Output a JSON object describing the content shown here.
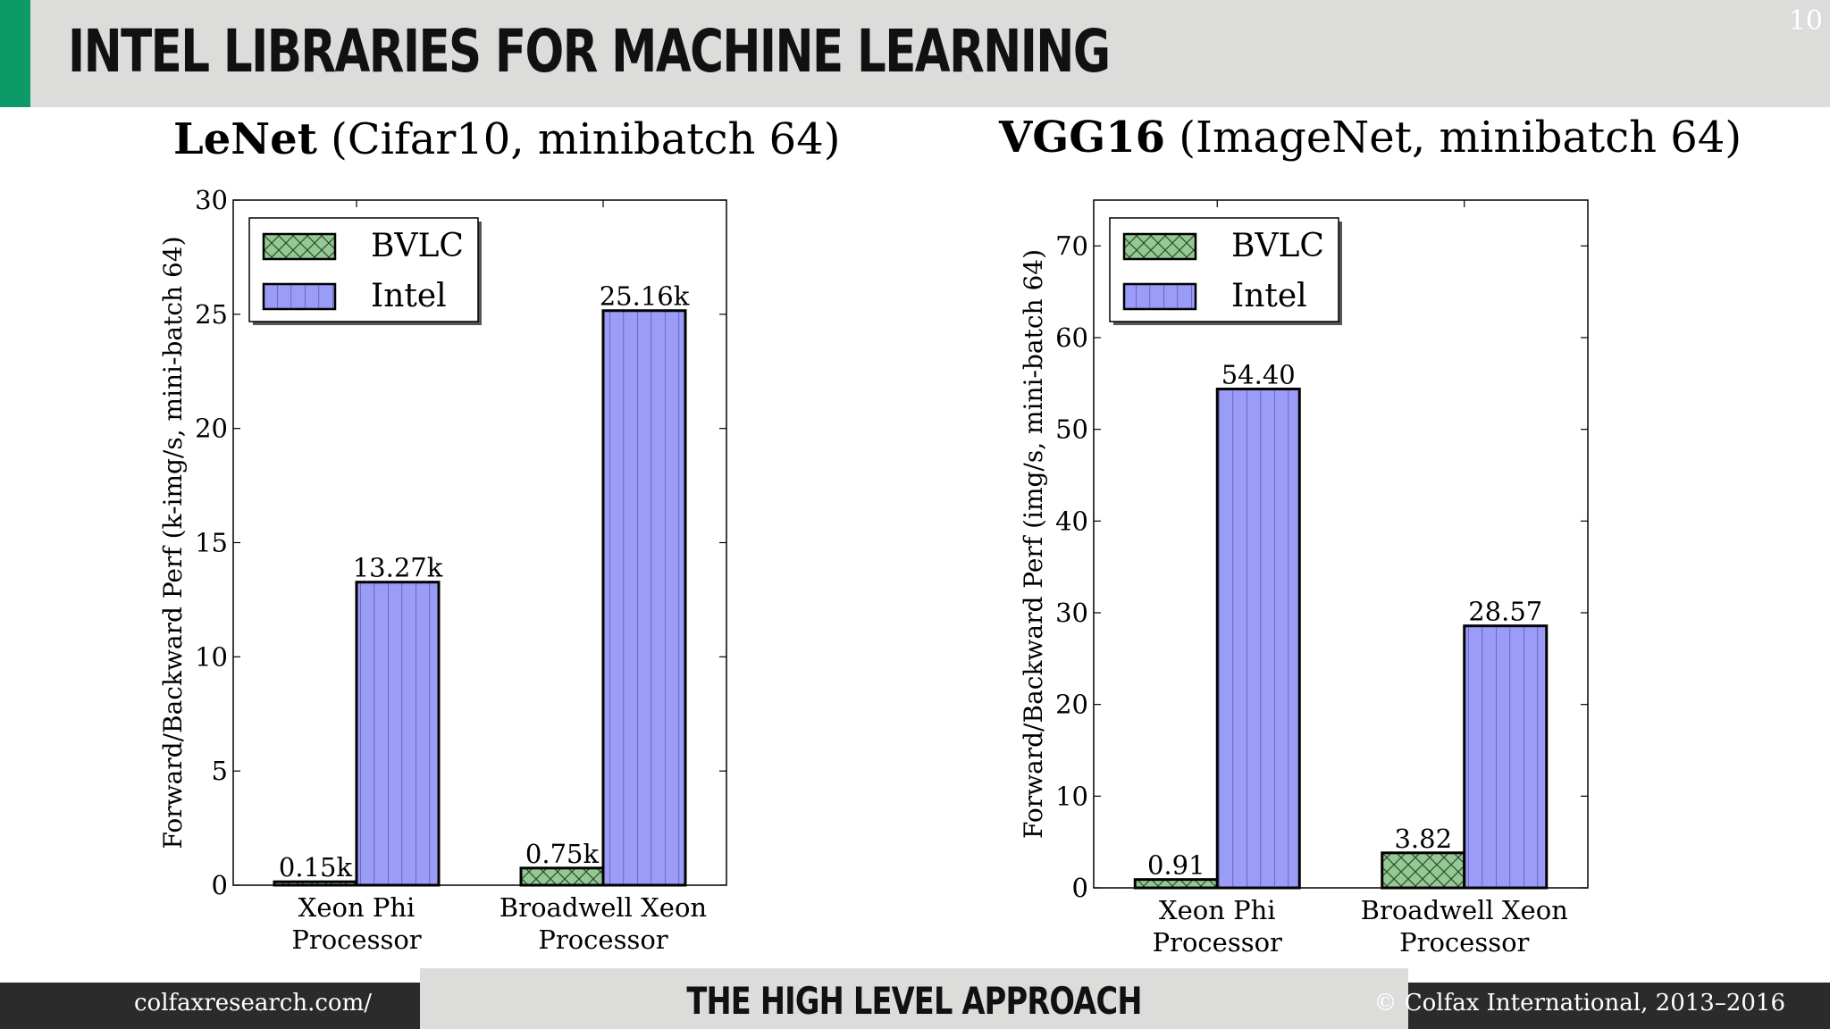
{
  "header": {
    "title": "INTEL LIBRARIES FOR MACHINE LEARNING",
    "slide_number": "10"
  },
  "footer": {
    "left": "colfaxresearch.com/",
    "center": "THE HIGH LEVEL APPROACH",
    "right": "© Colfax International, 2013–2016"
  },
  "chart_titles": [
    {
      "bold": "LeNet",
      "rest": " (Cifar10, minibatch 64)"
    },
    {
      "bold": "VGG16",
      "rest": " (ImageNet, minibatch 64)"
    }
  ],
  "colors": {
    "bvlc": "#94c994",
    "intel": "#9b9bf8",
    "accent": "#0c9b68"
  },
  "chart_data": [
    {
      "type": "bar",
      "title": "LeNet (Cifar10, minibatch 64)",
      "ylabel": "Forward/Backward Perf (k-img/s, mini-batch 64)",
      "xlabel": "",
      "categories": [
        [
          "Xeon Phi",
          "Processor"
        ],
        [
          "Broadwell Xeon",
          "Processor"
        ]
      ],
      "ylim": [
        0,
        30
      ],
      "yticks": [
        0,
        5,
        10,
        15,
        20,
        25,
        30
      ],
      "legend_position": "top-left",
      "series": [
        {
          "name": "BVLC",
          "values": [
            0.15,
            0.75
          ],
          "labels": [
            "0.15k",
            "0.75k"
          ],
          "pattern": "crosshatch"
        },
        {
          "name": "Intel",
          "values": [
            13.27,
            25.16
          ],
          "labels": [
            "13.27k",
            "25.16k"
          ],
          "pattern": "vertical"
        }
      ]
    },
    {
      "type": "bar",
      "title": "VGG16 (ImageNet, minibatch 64)",
      "ylabel": "Forward/Backward Perf (img/s, mini-batch 64)",
      "xlabel": "",
      "categories": [
        [
          "Xeon Phi",
          "Processor"
        ],
        [
          "Broadwell Xeon",
          "Processor"
        ]
      ],
      "ylim": [
        0,
        75
      ],
      "yticks": [
        0,
        10,
        20,
        30,
        40,
        50,
        60,
        70
      ],
      "legend_position": "top-left",
      "series": [
        {
          "name": "BVLC",
          "values": [
            0.91,
            3.82
          ],
          "labels": [
            "0.91",
            "3.82"
          ],
          "pattern": "crosshatch"
        },
        {
          "name": "Intel",
          "values": [
            54.4,
            28.57
          ],
          "labels": [
            "54.40",
            "28.57"
          ],
          "pattern": "vertical"
        }
      ]
    }
  ]
}
